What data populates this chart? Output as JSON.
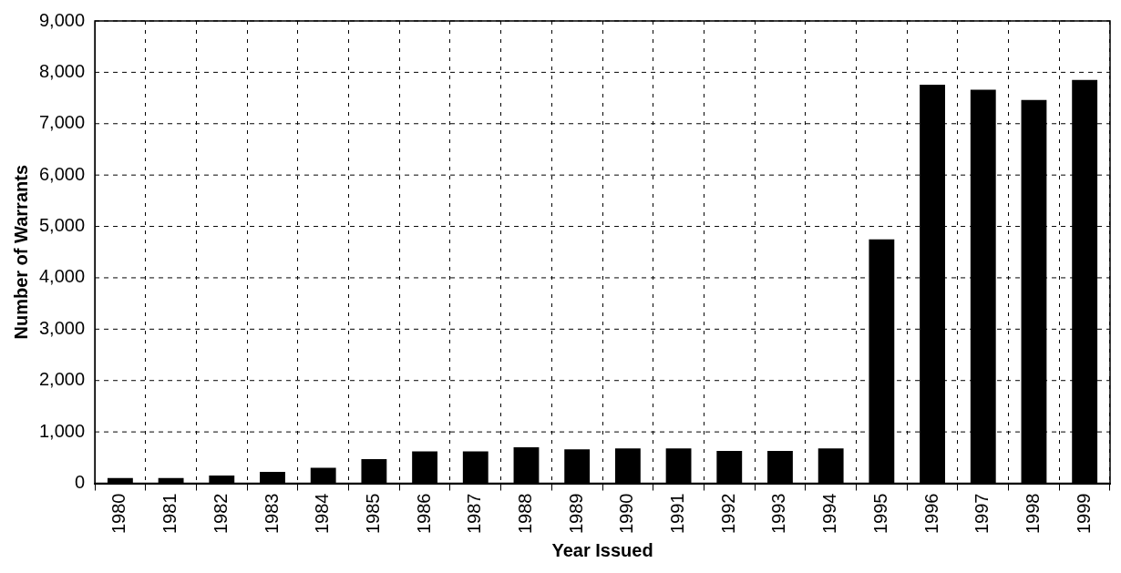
{
  "chart_data": {
    "type": "bar",
    "xlabel": "Year Issued",
    "ylabel": "Number of Warrants",
    "categories": [
      "1980",
      "1981",
      "1982",
      "1983",
      "1984",
      "1985",
      "1986",
      "1987",
      "1988",
      "1989",
      "1990",
      "1991",
      "1992",
      "1993",
      "1994",
      "1995",
      "1996",
      "1997",
      "1998",
      "1999"
    ],
    "values": [
      100,
      100,
      150,
      220,
      300,
      470,
      620,
      620,
      700,
      660,
      680,
      680,
      630,
      630,
      680,
      4750,
      7760,
      7660,
      7460,
      7850
    ],
    "color": "#000000",
    "ylim": [
      0,
      9000
    ],
    "yticks": [
      0,
      {
        "value": 1000,
        "label": "1,000"
      },
      {
        "value": 2000,
        "label": "2,000"
      },
      {
        "value": 3000,
        "label": "3,000"
      },
      {
        "value": 4000,
        "label": "4,000"
      },
      {
        "value": 5000,
        "label": "5,000"
      },
      {
        "value": 6000,
        "label": "6,000"
      },
      {
        "value": 7000,
        "label": "7,000"
      },
      {
        "value": 8000,
        "label": "8,000"
      },
      {
        "value": 9000,
        "label": "9,000"
      }
    ],
    "grid": true
  }
}
